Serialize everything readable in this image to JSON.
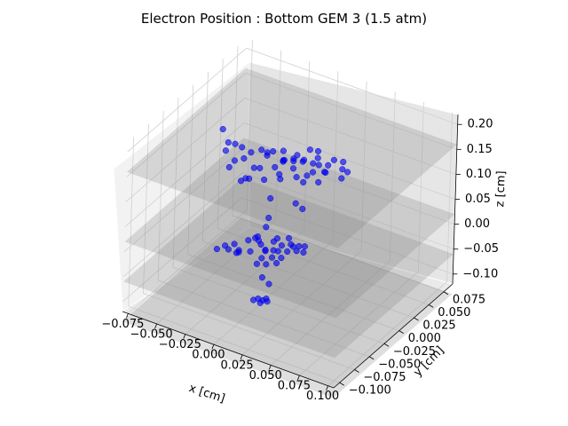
{
  "chart_data": {
    "type": "scatter",
    "projection": "3d",
    "title": "Electron Position : Bottom GEM 3 (1.5 atm)",
    "xlabel": "x [cm]",
    "ylabel": "y [cm]",
    "zlabel": "z [cm]",
    "xlim": [
      -0.08,
      0.105
    ],
    "ylim": [
      -0.11,
      0.09
    ],
    "zlim": [
      -0.12,
      0.22
    ],
    "x_ticks": [
      "−0.075",
      "−0.050",
      "−0.025",
      "0.000",
      "0.025",
      "0.050",
      "0.075",
      "0.100"
    ],
    "x_tick_values": [
      -0.075,
      -0.05,
      -0.025,
      0.0,
      0.025,
      0.05,
      0.075,
      0.1
    ],
    "y_ticks": [
      "−0.100",
      "−0.075",
      "−0.050",
      "−0.025",
      "0.000",
      "0.025",
      "0.050",
      "0.075"
    ],
    "y_tick_values": [
      -0.1,
      -0.075,
      -0.05,
      -0.025,
      0.0,
      0.025,
      0.05,
      0.075
    ],
    "z_ticks": [
      "−0.10",
      "−0.05",
      "0.00",
      "0.05",
      "0.10",
      "0.15",
      "0.20"
    ],
    "z_tick_values": [
      -0.1,
      -0.05,
      0.0,
      0.05,
      0.1,
      0.15,
      0.2
    ],
    "grid": true,
    "legend": "none",
    "planes": [
      {
        "name": "GEM plane",
        "z": 0.16,
        "color": "#808080",
        "alpha": 0.25
      },
      {
        "name": "GEM plane",
        "z": 0.02,
        "color": "#808080",
        "alpha": 0.25
      },
      {
        "name": "GEM plane",
        "z": -0.06,
        "color": "#808080",
        "alpha": 0.25
      },
      {
        "name": "GEM plane",
        "z": -0.14,
        "color": "#808080",
        "alpha": 0.25
      }
    ],
    "series": [
      {
        "color": "#0000ee",
        "points": [
          [
            0.005,
            -0.028,
            0.186
          ],
          [
            0.009,
            -0.018,
            0.18
          ],
          [
            0.013,
            -0.024,
            0.171
          ],
          [
            -0.002,
            -0.024,
            0.168
          ],
          [
            0.016,
            -0.014,
            0.166
          ],
          [
            0.021,
            -0.008,
            0.158
          ],
          [
            0.028,
            -0.004,
            0.156
          ],
          [
            0.02,
            -0.022,
            0.158
          ],
          [
            0.032,
            -0.012,
            0.15
          ],
          [
            0.039,
            -0.006,
            0.15
          ],
          [
            0.028,
            -0.014,
            0.142
          ],
          [
            0.024,
            -0.024,
            0.146
          ],
          [
            0.012,
            -0.03,
            0.148
          ],
          [
            0.004,
            -0.04,
            0.141
          ],
          [
            0.008,
            -0.03,
            0.159
          ],
          [
            0.015,
            -0.03,
            0.176
          ],
          [
            -0.004,
            -0.03,
            0.184
          ],
          [
            -0.01,
            -0.036,
            0.18
          ],
          [
            -0.017,
            -0.034,
            0.16
          ],
          [
            -0.024,
            -0.036,
            0.152
          ],
          [
            -0.023,
            -0.047,
            0.151
          ],
          [
            -0.006,
            -0.046,
            0.141
          ],
          [
            0.0,
            -0.04,
            0.161
          ],
          [
            -0.02,
            -0.032,
            0.178
          ],
          [
            -0.031,
            -0.022,
            0.165
          ],
          [
            -0.037,
            -0.022,
            0.163
          ],
          [
            -0.046,
            -0.014,
            0.174
          ],
          [
            0.032,
            -0.004,
            0.17
          ],
          [
            0.044,
            0.0,
            0.172
          ],
          [
            0.048,
            0.008,
            0.163
          ],
          [
            0.05,
            0.003,
            0.155
          ],
          [
            0.04,
            -0.002,
            0.16
          ],
          [
            0.037,
            0.0,
            0.141
          ],
          [
            0.036,
            -0.01,
            0.131
          ],
          [
            0.027,
            -0.018,
            0.132
          ],
          [
            0.025,
            -0.004,
            0.181
          ],
          [
            0.03,
            0.0,
            0.178
          ],
          [
            0.019,
            -0.02,
            0.17
          ],
          [
            0.052,
            0.008,
            0.146
          ],
          [
            0.05,
            0.002,
            0.138
          ],
          [
            0.0,
            -0.05,
            0.172
          ],
          [
            0.016,
            -0.036,
            0.148
          ],
          [
            -0.038,
            -0.024,
            0.148
          ],
          [
            0.027,
            -0.03,
            0.102
          ],
          [
            0.005,
            -0.03,
            0.094
          ],
          [
            0.033,
            -0.03,
            0.096
          ],
          [
            -0.014,
            -0.044,
            0.128
          ],
          [
            -0.004,
            -0.02,
            0.168
          ],
          [
            0.024,
            -0.012,
            0.168
          ],
          [
            0.034,
            -0.006,
            0.16
          ],
          [
            0.008,
            -0.016,
            0.158
          ],
          [
            0.014,
            -0.004,
            0.161
          ],
          [
            -0.006,
            -0.052,
            0.148
          ],
          [
            0.004,
            -0.03,
            0.054
          ],
          [
            0.002,
            -0.03,
            0.034
          ],
          [
            -0.004,
            -0.032,
            0.012
          ],
          [
            0.004,
            -0.034,
            -0.006
          ],
          [
            -0.014,
            -0.044,
            -0.015
          ],
          [
            -0.004,
            -0.026,
            -0.01
          ],
          [
            0.008,
            -0.028,
            -0.01
          ],
          [
            0.012,
            -0.022,
            -0.003
          ],
          [
            0.02,
            -0.018,
            -0.003
          ],
          [
            0.024,
            -0.016,
            -0.001
          ],
          [
            0.012,
            -0.01,
            -0.001
          ],
          [
            0.004,
            -0.02,
            -0.004
          ],
          [
            -0.006,
            -0.026,
            -0.004
          ],
          [
            -0.012,
            -0.032,
            -0.002
          ],
          [
            -0.018,
            -0.044,
            -0.002
          ],
          [
            -0.022,
            -0.046,
            -0.014
          ],
          [
            -0.016,
            -0.04,
            -0.017
          ],
          [
            -0.008,
            -0.036,
            -0.017
          ],
          [
            0.002,
            -0.03,
            -0.014
          ],
          [
            0.01,
            -0.024,
            -0.014
          ],
          [
            0.016,
            -0.02,
            -0.014
          ],
          [
            0.022,
            -0.016,
            -0.012
          ],
          [
            0.028,
            -0.016,
            -0.01
          ],
          [
            0.0,
            -0.032,
            -0.028
          ],
          [
            0.006,
            -0.026,
            -0.028
          ],
          [
            0.012,
            -0.022,
            -0.028
          ],
          [
            -0.002,
            -0.036,
            -0.037
          ],
          [
            0.004,
            -0.032,
            -0.037
          ],
          [
            0.01,
            -0.026,
            -0.036
          ],
          [
            0.002,
            -0.034,
            -0.063
          ],
          [
            0.006,
            -0.03,
            -0.077
          ],
          [
            0.0,
            -0.036,
            -0.105
          ],
          [
            0.003,
            -0.034,
            -0.108
          ],
          [
            0.006,
            -0.032,
            -0.11
          ],
          [
            0.002,
            -0.036,
            -0.112
          ],
          [
            -0.004,
            -0.036,
            -0.111
          ],
          [
            0.004,
            -0.03,
            -0.108
          ],
          [
            -0.018,
            -0.04,
            -0.024
          ],
          [
            -0.024,
            -0.048,
            -0.006
          ],
          [
            0.026,
            -0.01,
            -0.006
          ],
          [
            0.016,
            -0.014,
            -0.006
          ],
          [
            -0.01,
            -0.024,
            -0.004
          ],
          [
            0.006,
            -0.018,
            0.002
          ],
          [
            -0.028,
            -0.054,
            -0.01
          ]
        ]
      }
    ]
  }
}
